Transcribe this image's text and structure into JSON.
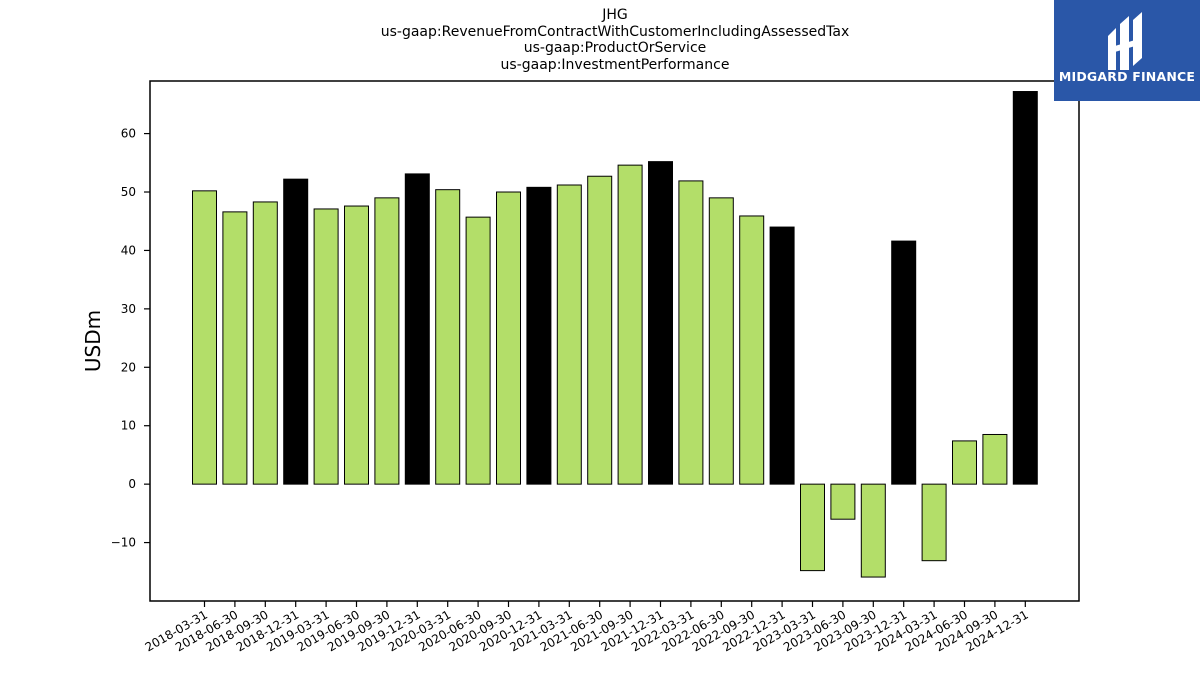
{
  "brand": {
    "name": "MIDGARD FINANCE",
    "background": "#2a57a8",
    "icon": "midgard-logo-icon"
  },
  "chart_data": {
    "type": "bar",
    "title_lines": [
      "JHG",
      "us-gaap:RevenueFromContractWithCustomerIncludingAssessedTax",
      "us-gaap:ProductOrService",
      "us-gaap:InvestmentPerformance"
    ],
    "xlabel": "",
    "ylabel": "USDm",
    "ylim": [
      -20,
      69
    ],
    "yticks": [
      -10,
      0,
      10,
      20,
      30,
      40,
      50,
      60
    ],
    "grid": false,
    "colors": {
      "quarter": "#b3de69",
      "year_end": "#000000",
      "edge": "#000000"
    },
    "categories": [
      "2018-03-31",
      "2018-06-30",
      "2018-09-30",
      "2018-12-31",
      "2019-03-31",
      "2019-06-30",
      "2019-09-30",
      "2019-12-31",
      "2020-03-31",
      "2020-06-30",
      "2020-09-30",
      "2020-12-31",
      "2021-03-31",
      "2021-06-30",
      "2021-09-30",
      "2021-12-31",
      "2022-03-31",
      "2022-06-30",
      "2022-09-30",
      "2022-12-31",
      "2023-03-31",
      "2023-06-30",
      "2023-09-30",
      "2023-12-31",
      "2024-03-31",
      "2024-06-30",
      "2024-09-30",
      "2024-12-31"
    ],
    "values": [
      50.2,
      46.6,
      48.3,
      52.2,
      47.1,
      47.6,
      49.0,
      53.1,
      50.4,
      45.7,
      50.0,
      50.8,
      51.2,
      52.7,
      54.6,
      55.2,
      51.9,
      49.0,
      45.9,
      44.0,
      -14.8,
      -6.0,
      -15.9,
      41.6,
      -13.1,
      7.4,
      8.5,
      67.2
    ]
  }
}
